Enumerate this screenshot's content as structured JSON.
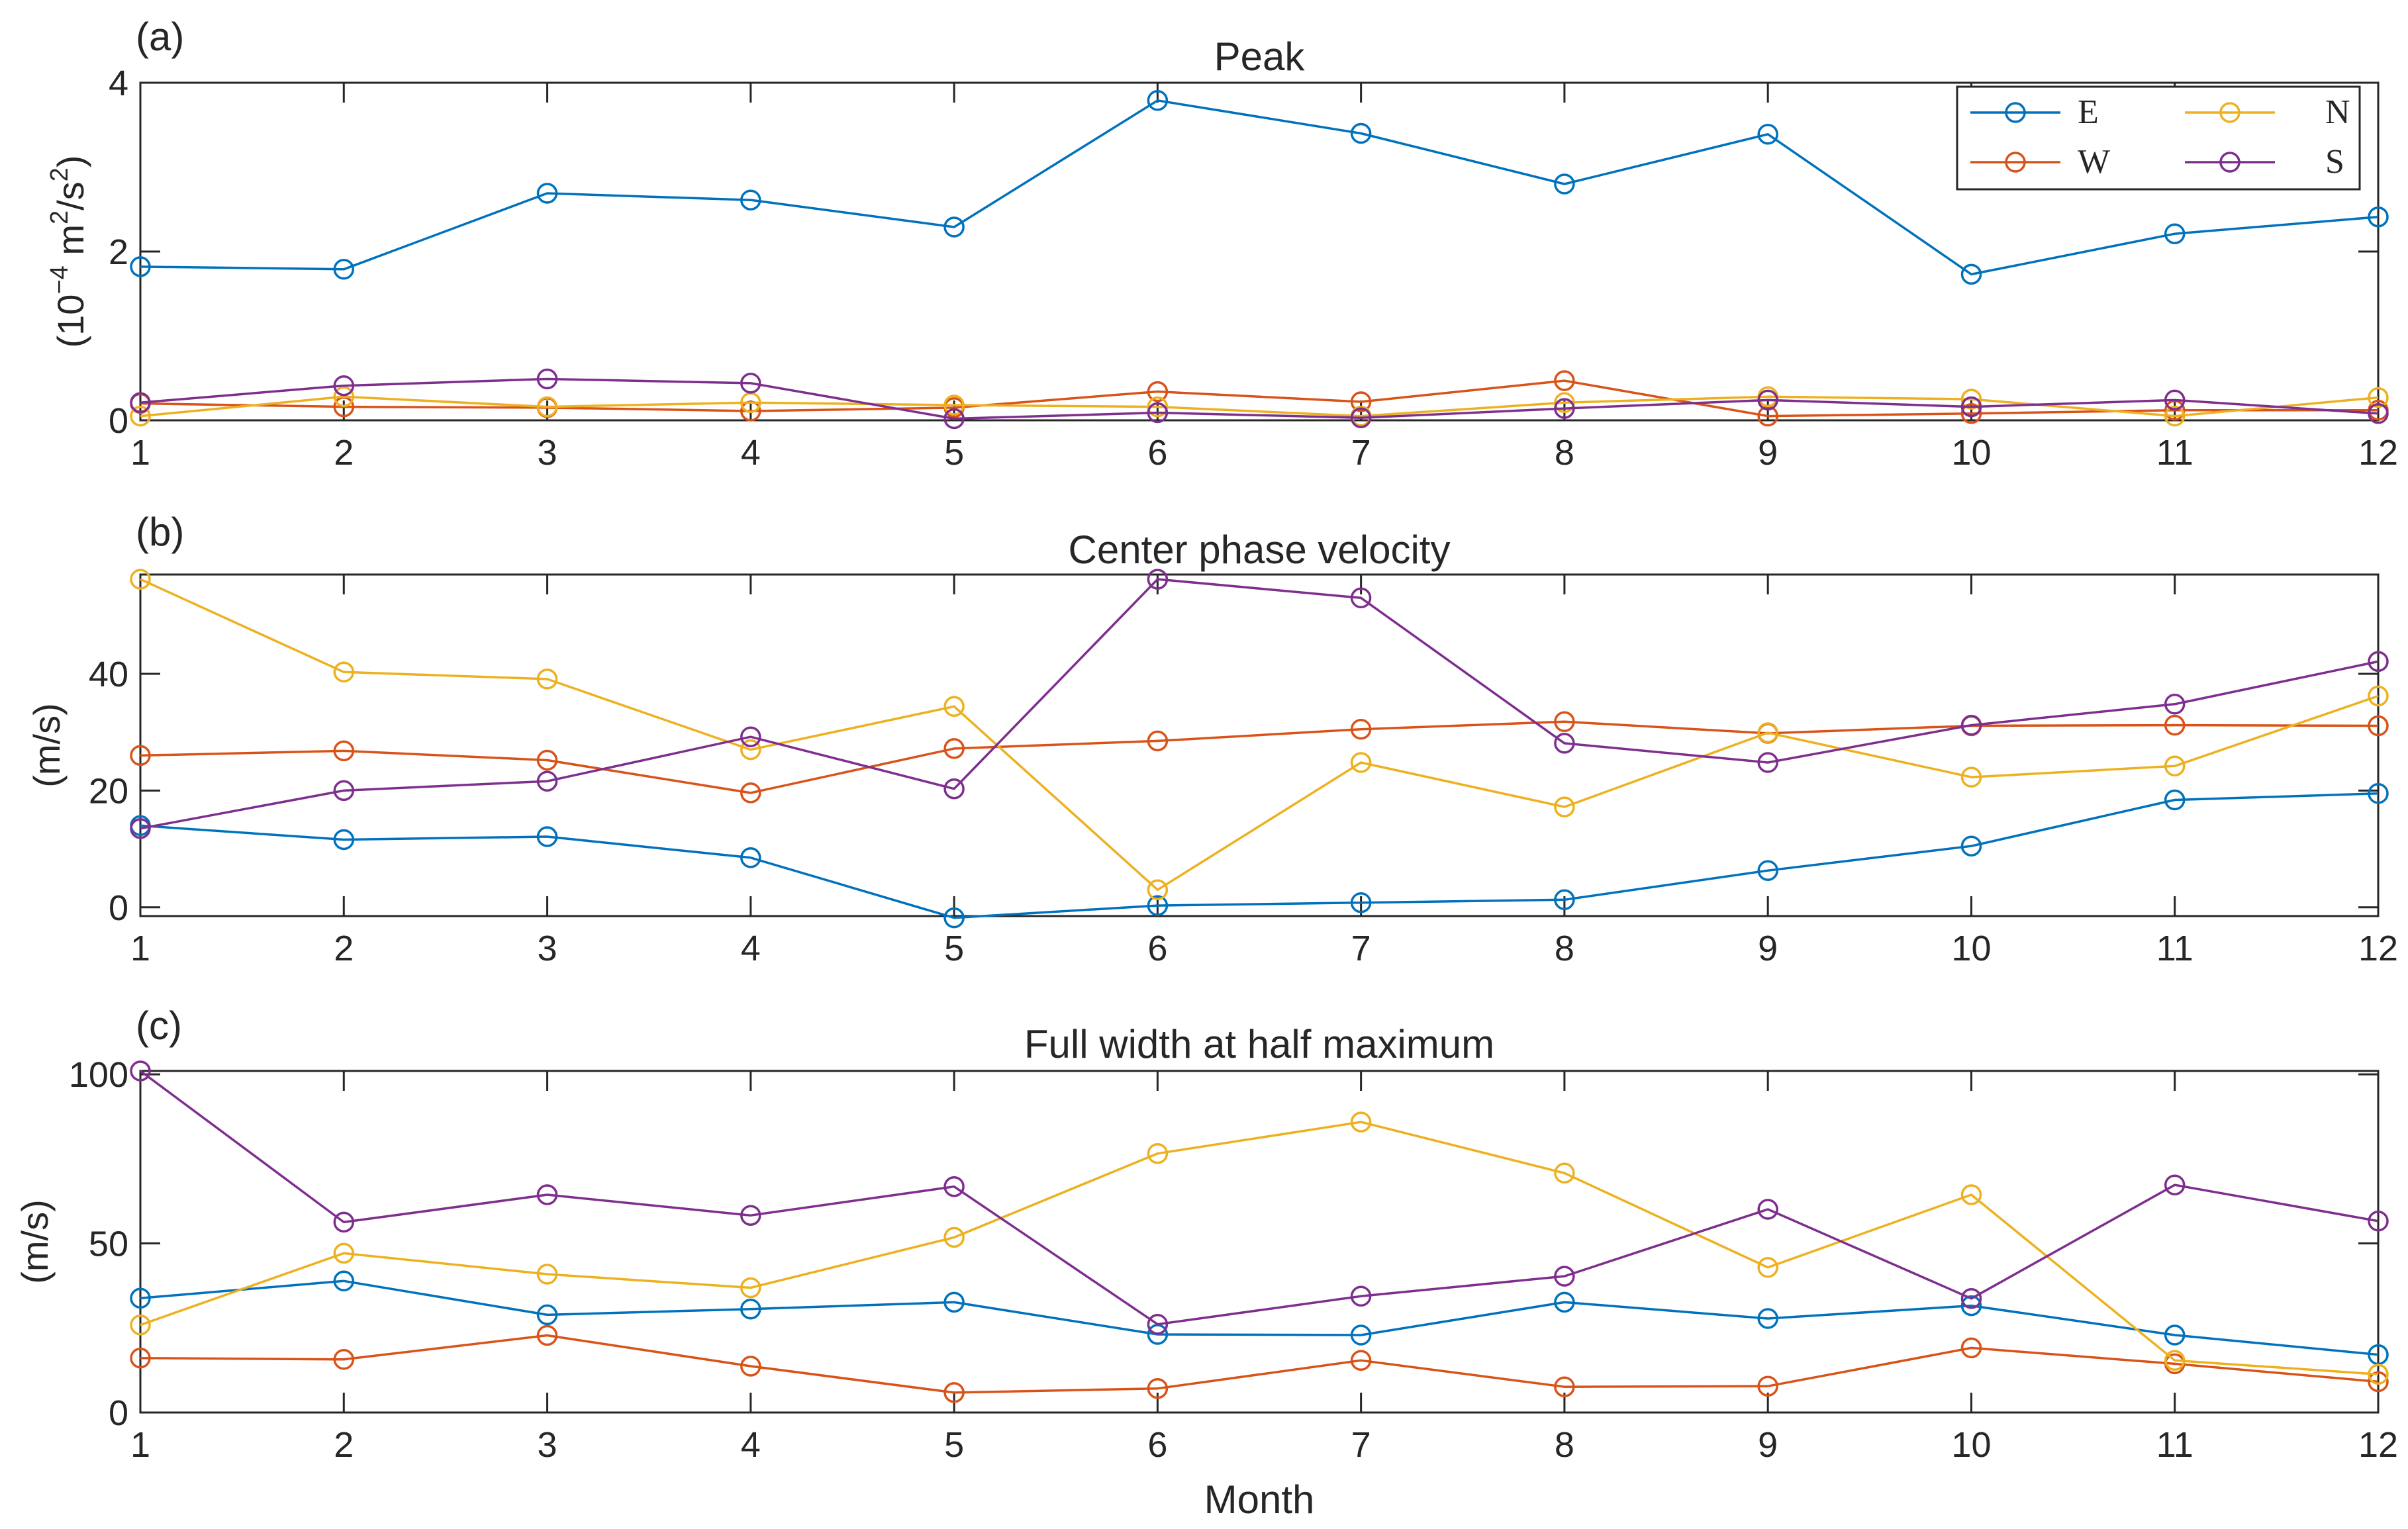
{
  "colors": {
    "E": "#0072BD",
    "W": "#D95319",
    "N": "#EDB120",
    "S": "#7E2F8E",
    "axis": "#262626"
  },
  "legend": {
    "entries": [
      {
        "key": "E",
        "label": "E"
      },
      {
        "key": "N",
        "label": "N"
      },
      {
        "key": "W",
        "label": "W"
      },
      {
        "key": "S",
        "label": "S"
      }
    ]
  },
  "xlabel": "Month",
  "chart_data": [
    {
      "type": "line",
      "panel_label": "(a)",
      "title": "Peak",
      "ylabel_prefix": "(10",
      "ylabel_exp1": "−4",
      "ylabel_mid": " m",
      "ylabel_exp2": "2",
      "ylabel_mid2": "/s",
      "ylabel_exp3": "2",
      "ylabel_suffix": ")",
      "x": [
        1,
        2,
        3,
        4,
        5,
        6,
        7,
        8,
        9,
        10,
        11,
        12
      ],
      "xlim": [
        1,
        12
      ],
      "ylim": [
        0,
        4
      ],
      "yticks": [
        0,
        2,
        4
      ],
      "xticks": [
        1,
        2,
        3,
        4,
        5,
        6,
        7,
        8,
        9,
        10,
        11,
        12
      ],
      "series": [
        {
          "name": "E",
          "values": [
            1.82,
            1.79,
            2.69,
            2.61,
            2.29,
            3.79,
            3.4,
            2.8,
            3.39,
            1.73,
            2.21,
            2.41
          ]
        },
        {
          "name": "W",
          "values": [
            0.2,
            0.16,
            0.15,
            0.11,
            0.15,
            0.34,
            0.22,
            0.47,
            0.05,
            0.08,
            0.12,
            0.12
          ]
        },
        {
          "name": "N",
          "values": [
            0.05,
            0.28,
            0.16,
            0.21,
            0.18,
            0.16,
            0.05,
            0.21,
            0.28,
            0.25,
            0.05,
            0.27
          ]
        },
        {
          "name": "S",
          "values": [
            0.21,
            0.41,
            0.49,
            0.44,
            0.02,
            0.09,
            0.03,
            0.14,
            0.24,
            0.16,
            0.24,
            0.08
          ]
        }
      ]
    },
    {
      "type": "line",
      "panel_label": "(b)",
      "title": "Center phase velocity",
      "ylabel": "(m/s)",
      "x": [
        1,
        2,
        3,
        4,
        5,
        6,
        7,
        8,
        9,
        10,
        11,
        12
      ],
      "xlim": [
        1,
        12
      ],
      "ylim": [
        -1.5,
        57
      ],
      "yticks": [
        0,
        20,
        40
      ],
      "xticks": [
        1,
        2,
        3,
        4,
        5,
        6,
        7,
        8,
        9,
        10,
        11,
        12
      ],
      "series": [
        {
          "name": "E",
          "values": [
            14.0,
            11.6,
            12.1,
            8.5,
            -1.8,
            0.3,
            0.8,
            1.3,
            6.3,
            10.5,
            18.4,
            19.5
          ]
        },
        {
          "name": "W",
          "values": [
            26.0,
            26.8,
            25.2,
            19.6,
            27.2,
            28.5,
            30.5,
            31.8,
            29.8,
            31.1,
            31.2,
            31.1
          ]
        },
        {
          "name": "N",
          "values": [
            56.2,
            40.3,
            39.1,
            27.0,
            34.4,
            3.0,
            24.8,
            17.2,
            29.9,
            22.3,
            24.2,
            36.2
          ]
        },
        {
          "name": "S",
          "values": [
            13.5,
            20.0,
            21.6,
            29.2,
            20.3,
            56.2,
            53.0,
            28.1,
            24.8,
            31.2,
            34.8,
            42.1
          ]
        }
      ]
    },
    {
      "type": "line",
      "panel_label": "(c)",
      "title": "Full width at half maximum",
      "ylabel": "(m/s)",
      "x": [
        1,
        2,
        3,
        4,
        5,
        6,
        7,
        8,
        9,
        10,
        11,
        12
      ],
      "xlim": [
        1,
        12
      ],
      "ylim": [
        0,
        101
      ],
      "yticks": [
        0,
        50,
        100
      ],
      "xticks": [
        1,
        2,
        3,
        4,
        5,
        6,
        7,
        8,
        9,
        10,
        11,
        12
      ],
      "series": [
        {
          "name": "E",
          "values": [
            33.8,
            38.9,
            28.9,
            30.6,
            32.6,
            23.1,
            22.9,
            32.6,
            27.8,
            31.6,
            22.9,
            17.1
          ]
        },
        {
          "name": "W",
          "values": [
            16.1,
            15.7,
            22.8,
            13.7,
            5.9,
            7.1,
            15.4,
            7.6,
            7.8,
            19.1,
            14.4,
            9.1
          ]
        },
        {
          "name": "N",
          "values": [
            25.9,
            47.1,
            40.9,
            36.9,
            51.8,
            76.6,
            85.9,
            70.8,
            42.9,
            64.4,
            15.4,
            11.3
          ]
        },
        {
          "name": "S",
          "values": [
            101.0,
            56.3,
            64.4,
            58.3,
            66.8,
            26.1,
            34.4,
            40.3,
            60.1,
            33.7,
            67.3,
            56.6
          ]
        }
      ]
    }
  ]
}
